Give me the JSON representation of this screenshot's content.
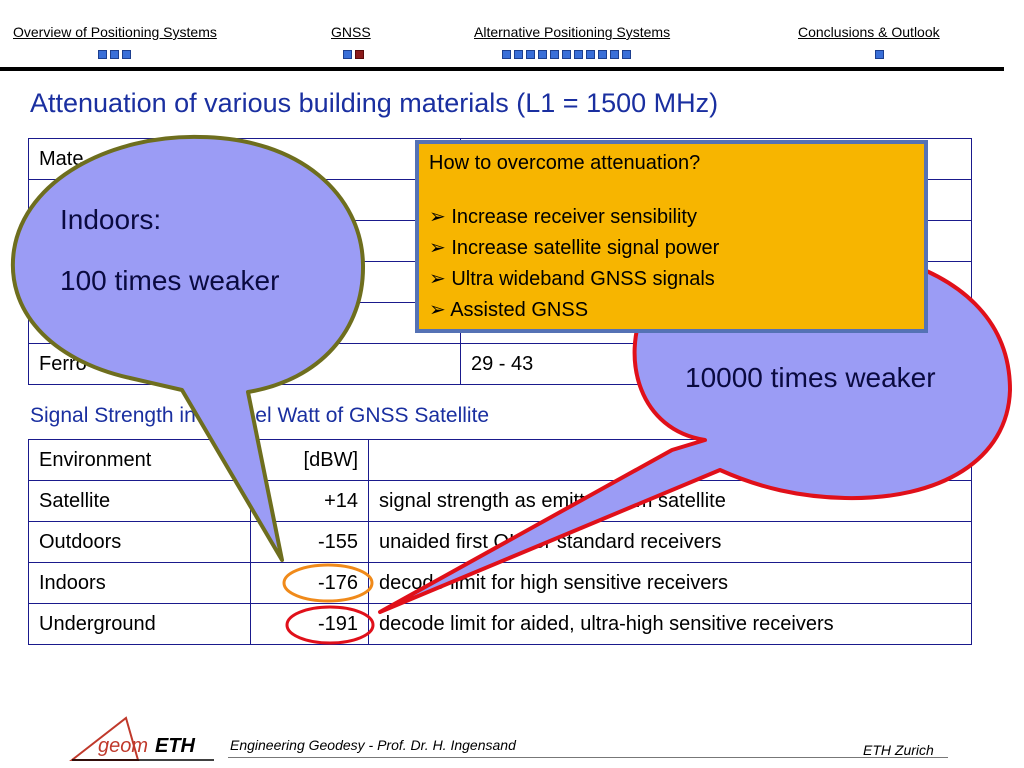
{
  "nav": {
    "items": [
      {
        "label": "Overview of Positioning Systems",
        "dots": 3,
        "active_index": -1
      },
      {
        "label": "GNSS",
        "dots": 2,
        "active_index": 1
      },
      {
        "label": "Alternative Positioning Systems",
        "dots": 11,
        "active_index": -1
      },
      {
        "label": "Conclusions & Outlook",
        "dots": 1,
        "active_index": -1
      }
    ]
  },
  "page_title": "Attenuation of various building materials (L1 = 1500 MHz)",
  "materials_table": {
    "rows": [
      [
        "Mate",
        ""
      ],
      [
        "",
        ""
      ],
      [
        "",
        ""
      ],
      [
        "",
        ""
      ],
      [
        "",
        ""
      ],
      [
        "Ferro",
        "29 - 43"
      ]
    ]
  },
  "subtitle": "Signal Strength in Decibel Watt of GNSS Satellite",
  "signal_table": {
    "header": [
      "Environment",
      "[dBW]",
      ""
    ],
    "rows": [
      [
        "Satellite",
        "+14",
        "signal strength as emitted from satellite"
      ],
      [
        "Outdoors",
        "-155",
        "unaided first OK for standard receivers"
      ],
      [
        "Indoors",
        "-176",
        "decode limit for high sensitive receivers"
      ],
      [
        "Underground",
        "-191",
        "decode limit for aided, ultra-high sensitive receivers"
      ]
    ]
  },
  "tip_box": {
    "question": "How to overcome attenuation?",
    "bullet": "➢",
    "items": [
      "Increase receiver sensibility",
      "Increase satellite signal power",
      "Ultra wideband GNSS signals",
      "Assisted GNSS"
    ]
  },
  "callout_indoors": {
    "line1": "Indoors:",
    "line2": "100 times weaker"
  },
  "callout_underground": {
    "line1": "10000 times weaker"
  },
  "footer": {
    "logo_text_1": "geom",
    "logo_text_2": "ETH",
    "course": "Engineering Geodesy - Prof. Dr. H. Ingensand",
    "institution": "ETH Zurich"
  },
  "colors": {
    "title_blue": "#1a2fa0",
    "tip_box_bg": "#f7b500",
    "bubble_fill": "#9b9cf5",
    "indoors_border": "#6e6e1e",
    "underground_border": "#e0101a",
    "highlight_orange": "#f08a1a"
  }
}
